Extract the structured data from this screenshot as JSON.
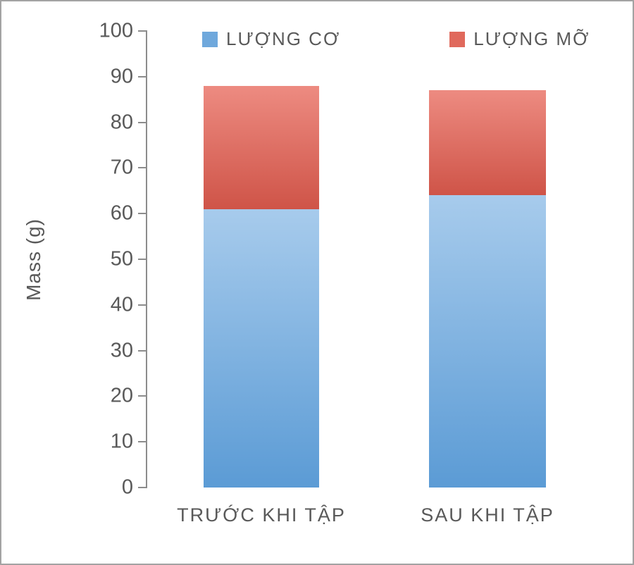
{
  "chart_data": {
    "type": "bar",
    "stacked": true,
    "title": "",
    "xlabel": "",
    "ylabel": "Mass (g)",
    "ylim": [
      0,
      100
    ],
    "yticks": [
      0,
      10,
      20,
      30,
      40,
      50,
      60,
      70,
      80,
      90,
      100
    ],
    "grid": false,
    "legend_position": "top",
    "categories": [
      "TRƯỚC KHI TẬP",
      "SAU KHI TẬP"
    ],
    "series": [
      {
        "name": "LƯỢNG CƠ",
        "values": [
          61,
          64
        ],
        "swatch_color": "#6fa8dc",
        "color": "#5b9bd5",
        "color_light": "#a7cbec"
      },
      {
        "name": "LƯỢNG MỠ",
        "values": [
          27,
          23
        ],
        "swatch_color": "#e0695c",
        "color": "#cf5448",
        "color_light": "#ed8b81"
      }
    ],
    "axis_color": "#8c8c8c",
    "text_color": "#595959"
  }
}
